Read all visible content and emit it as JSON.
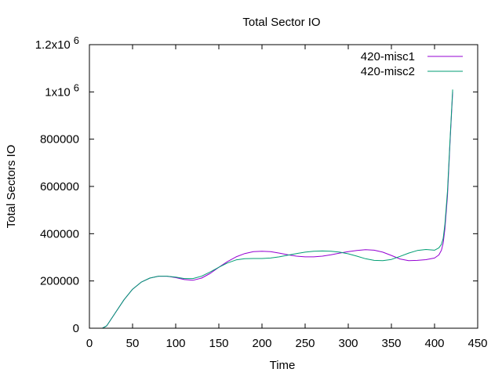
{
  "chart_data": {
    "type": "line",
    "title": "Total Sector IO",
    "xlabel": "Time",
    "ylabel": "Total Sectors IO",
    "xlim": [
      0,
      450
    ],
    "ylim": [
      0,
      1200000
    ],
    "x_ticks": [
      0,
      50,
      100,
      150,
      200,
      250,
      300,
      350,
      400,
      450
    ],
    "x_tick_labels": [
      "0",
      "50",
      "100",
      "150",
      "200",
      "250",
      "300",
      "350",
      "400",
      "450"
    ],
    "y_ticks": [
      0,
      200000,
      400000,
      600000,
      800000,
      1000000,
      1200000
    ],
    "y_tick_labels": [
      {
        "base": "0",
        "exp": ""
      },
      {
        "base": "200000",
        "exp": ""
      },
      {
        "base": "400000",
        "exp": ""
      },
      {
        "base": "600000",
        "exp": ""
      },
      {
        "base": "800000",
        "exp": ""
      },
      {
        "base": "1x10",
        "exp": "6"
      },
      {
        "base": "1.2x10",
        "exp": "6"
      }
    ],
    "grid": false,
    "legend_position": "top-right",
    "series": [
      {
        "name": "420-misc1",
        "color": "#9400d3",
        "x": [
          15,
          20,
          30,
          40,
          50,
          60,
          70,
          80,
          90,
          100,
          110,
          120,
          130,
          140,
          150,
          160,
          170,
          180,
          190,
          200,
          210,
          220,
          230,
          240,
          250,
          260,
          270,
          280,
          290,
          300,
          310,
          320,
          330,
          340,
          350,
          360,
          370,
          380,
          390,
          400,
          405,
          408,
          410,
          412,
          415,
          418,
          421
        ],
        "y": [
          0,
          10000,
          65000,
          120000,
          165000,
          195000,
          212000,
          220000,
          220000,
          214000,
          206000,
          203000,
          212000,
          232000,
          258000,
          282000,
          302000,
          316000,
          324000,
          326000,
          324000,
          318000,
          311000,
          305000,
          302000,
          302000,
          305000,
          311000,
          318000,
          324000,
          329000,
          332000,
          330000,
          322000,
          308000,
          293000,
          286000,
          287000,
          290000,
          297000,
          310000,
          330000,
          360000,
          420000,
          560000,
          790000,
          1000000
        ]
      },
      {
        "name": "420-misc2",
        "color": "#009e73",
        "x": [
          15,
          20,
          30,
          40,
          50,
          60,
          70,
          80,
          90,
          100,
          110,
          120,
          130,
          140,
          150,
          160,
          170,
          180,
          190,
          200,
          210,
          220,
          230,
          240,
          250,
          260,
          270,
          280,
          290,
          300,
          310,
          320,
          330,
          340,
          350,
          360,
          370,
          380,
          390,
          400,
          405,
          408,
          410,
          412,
          415,
          418,
          421
        ],
        "y": [
          0,
          10000,
          65000,
          120000,
          165000,
          195000,
          212000,
          220000,
          220000,
          216000,
          210000,
          210000,
          220000,
          238000,
          258000,
          276000,
          289000,
          294000,
          295000,
          295000,
          297000,
          302000,
          309000,
          316000,
          322000,
          326000,
          327000,
          326000,
          322000,
          315000,
          305000,
          294000,
          287000,
          286000,
          291000,
          304000,
          318000,
          329000,
          333000,
          330000,
          340000,
          355000,
          380000,
          440000,
          580000,
          800000,
          1010000
        ]
      }
    ]
  }
}
